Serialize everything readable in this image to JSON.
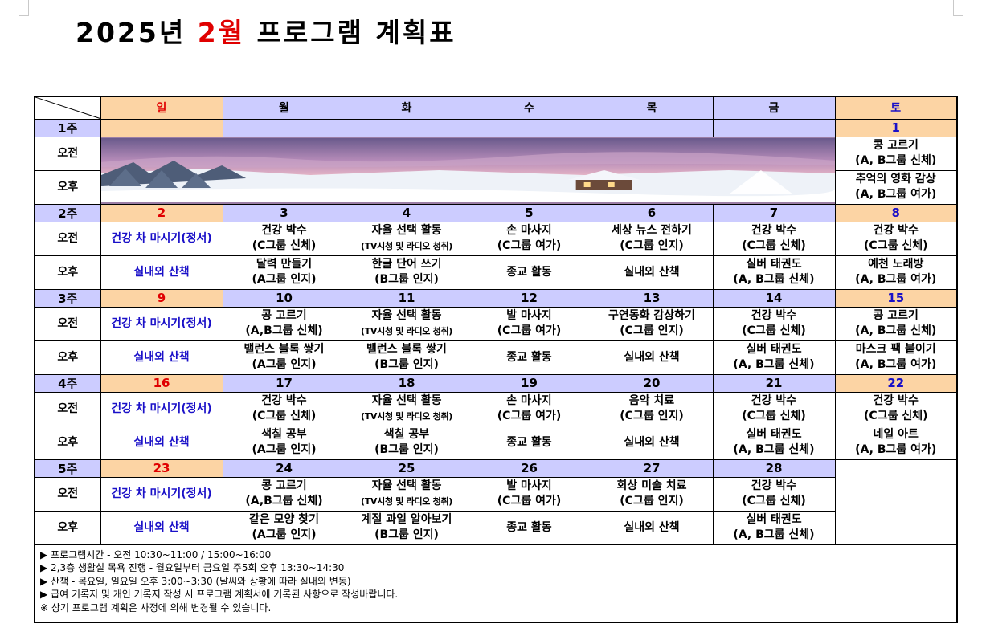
{
  "title": {
    "year": "2025년",
    "month": "2월",
    "rest": "프로그램 계획표"
  },
  "days": [
    "일",
    "월",
    "화",
    "수",
    "목",
    "금",
    "토"
  ],
  "slots": {
    "am": "오전",
    "pm": "오후"
  },
  "weeks": [
    {
      "label": "1주",
      "dates": [
        "",
        "",
        "",
        "",
        "",
        "",
        "1"
      ],
      "am": [
        "",
        "",
        "",
        "",
        "",
        "",
        [
          "콩 고르기",
          "(A, B그룹 신체)"
        ]
      ],
      "pm": [
        "",
        "",
        "",
        "",
        "",
        "",
        [
          "추억의 영화 감상",
          "(A, B그룹 여가)"
        ]
      ]
    },
    {
      "label": "2주",
      "dates": [
        "2",
        "3",
        "4",
        "5",
        "6",
        "7",
        "8"
      ],
      "am": [
        [
          "건강 차 마시기(정서)"
        ],
        [
          "건강 박수",
          "(C그룹 신체)"
        ],
        [
          "자율 선택 활동",
          "(TV시청 및 라디오 청취)"
        ],
        [
          "손 마사지",
          "(C그룹 여가)"
        ],
        [
          "세상 뉴스 전하기",
          "(C그룹 인지)"
        ],
        [
          "건강 박수",
          "(C그룹 신체)"
        ],
        [
          "건강 박수",
          "(C그룹 신체)"
        ]
      ],
      "pm": [
        [
          "실내외 산책"
        ],
        [
          "달력 만들기",
          "(A그룹 인지)"
        ],
        [
          "한글 단어 쓰기",
          "(B그룹 인지)"
        ],
        [
          "종교 활동"
        ],
        [
          "실내외 산책"
        ],
        [
          "실버 태권도",
          "(A, B그룹 신체)"
        ],
        [
          "예천 노래방",
          "(A, B그룹 여가)"
        ]
      ]
    },
    {
      "label": "3주",
      "dates": [
        "9",
        "10",
        "11",
        "12",
        "13",
        "14",
        "15"
      ],
      "am": [
        [
          "건강 차 마시기(정서)"
        ],
        [
          "콩 고르기",
          "(A,B그룹 신체)"
        ],
        [
          "자율 선택 활동",
          "(TV시청 및 라디오 청취)"
        ],
        [
          "발 마사지",
          "(C그룹 여가)"
        ],
        [
          "구연동화 감상하기",
          "(C그룹 인지)"
        ],
        [
          "건강 박수",
          "(C그룹 신체)"
        ],
        [
          "콩 고르기",
          "(A, B그룹 신체)"
        ]
      ],
      "pm": [
        [
          "실내외 산책"
        ],
        [
          "밸런스 블록 쌓기",
          "(A그룹 인지)"
        ],
        [
          "밸런스 블록 쌓기",
          "(B그룹 인지)"
        ],
        [
          "종교 활동"
        ],
        [
          "실내외 산책"
        ],
        [
          "실버 태권도",
          "(A, B그룹 신체)"
        ],
        [
          "마스크 팩 붙이기",
          "(A, B그룹 여가)"
        ]
      ]
    },
    {
      "label": "4주",
      "dates": [
        "16",
        "17",
        "18",
        "19",
        "20",
        "21",
        "22"
      ],
      "am": [
        [
          "건강 차 마시기(정서)"
        ],
        [
          "건강 박수",
          "(C그룹 신체)"
        ],
        [
          "자율 선택 활동",
          "(TV시청 및 라디오 청취)"
        ],
        [
          "손 마사지",
          "(C그룹 여가)"
        ],
        [
          "음악 치료",
          "(C그룹 인지)"
        ],
        [
          "건강 박수",
          "(C그룹 신체)"
        ],
        [
          "건강 박수",
          "(C그룹 신체)"
        ]
      ],
      "pm": [
        [
          "실내외 산책"
        ],
        [
          "색칠 공부",
          "(A그룹 인지)"
        ],
        [
          "색칠 공부",
          "(B그룹 인지)"
        ],
        [
          "종교 활동"
        ],
        [
          "실내외 산책"
        ],
        [
          "실버 태권도",
          "(A, B그룹 신체)"
        ],
        [
          "네일 아트",
          "(A, B그룹 여가)"
        ]
      ]
    },
    {
      "label": "5주",
      "dates": [
        "23",
        "24",
        "25",
        "26",
        "27",
        "28",
        ""
      ],
      "am": [
        [
          "건강 차 마시기(정서)"
        ],
        [
          "콩 고르기",
          "(A,B그룹 신체)"
        ],
        [
          "자율 선택 활동",
          "(TV시청 및 라디오 청취)"
        ],
        [
          "발 마사지",
          "(C그룹 여가)"
        ],
        [
          "회상 미술 치료",
          "(C그룹 인지)"
        ],
        [
          "건강 박수",
          "(C그룹 신체)"
        ],
        ""
      ],
      "pm": [
        [
          "실내외 산책"
        ],
        [
          "같은 모양 찾기",
          "(A그룹 인지)"
        ],
        [
          "계절 과일 알아보기",
          "(B그룹 인지)"
        ],
        [
          "종교 활동"
        ],
        [
          "실내외 산책"
        ],
        [
          "실버 태권도",
          "(A, B그룹 신체)"
        ],
        ""
      ]
    }
  ],
  "notes": [
    "▶ 프로그램시간 - 오전 10:30~11:00 / 15:00~16:00",
    "▶ 2,3층 생활실 목욕 진행 - 월요일부터 금요일 주5회 오후 13:30~14:30",
    "▶ 산책 - 목요일, 일요일 오후 3:00~3:30 (날씨와 상황에 따라 실내외 변동)",
    "▶ 급여 기록지 및 개인 기록지 작성 시 프로그램 계획서에 기록된 사항으로 작성바랍니다.",
    "※ 상기 프로그램 계획은 사정에 의해 변경될 수 있습니다."
  ],
  "colors": {
    "title_accent": "#e00000",
    "sunday_bg": "#fcd4a4",
    "weekday_bg": "#ccccff",
    "sunday_text": "#e00000",
    "saturday_text": "#1a10c8",
    "sunday_activity": "#1a10c8"
  },
  "image": {
    "description_icon": "snowy-landscape-photo"
  }
}
